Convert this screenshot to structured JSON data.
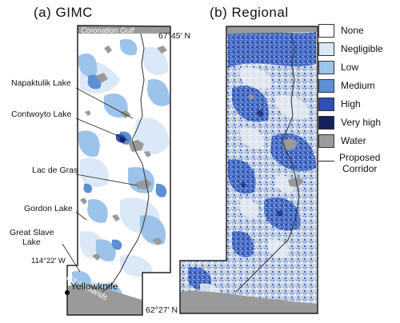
{
  "panel_a": {
    "title": "(a)   GIMC",
    "labels": {
      "coronation_gulf": "Coronation Gulf",
      "lat_north": "67°45′ N",
      "napaktulik": "Napaktulik Lake",
      "contwoyto": "Contwoyto Lake",
      "lac_de_gras": "Lac de Gras",
      "gordon": "Gordon Lake",
      "great_slave_1": "Great Slave",
      "great_slave_2": "Lake",
      "lon_west": "114°22′ W",
      "gs_lowlands": "GS Lowlands",
      "yellowknife": "Yellowknife",
      "lat_south": "62°27′ N"
    }
  },
  "panel_b": {
    "title": "(b)   Regional"
  },
  "legend": {
    "items": [
      {
        "label": "None",
        "color": "#ffffff"
      },
      {
        "label": "Negligible",
        "color": "#dbe8f7"
      },
      {
        "label": "Low",
        "color": "#9cc3ea"
      },
      {
        "label": "Medium",
        "color": "#5b8fd6"
      },
      {
        "label": "High",
        "color": "#2f4fb4"
      },
      {
        "label": "Very high",
        "color": "#17215e"
      },
      {
        "label": "Water",
        "color": "#9a9a9a"
      }
    ],
    "corridor_line1": "Proposed",
    "corridor_line2": "Corridor"
  }
}
